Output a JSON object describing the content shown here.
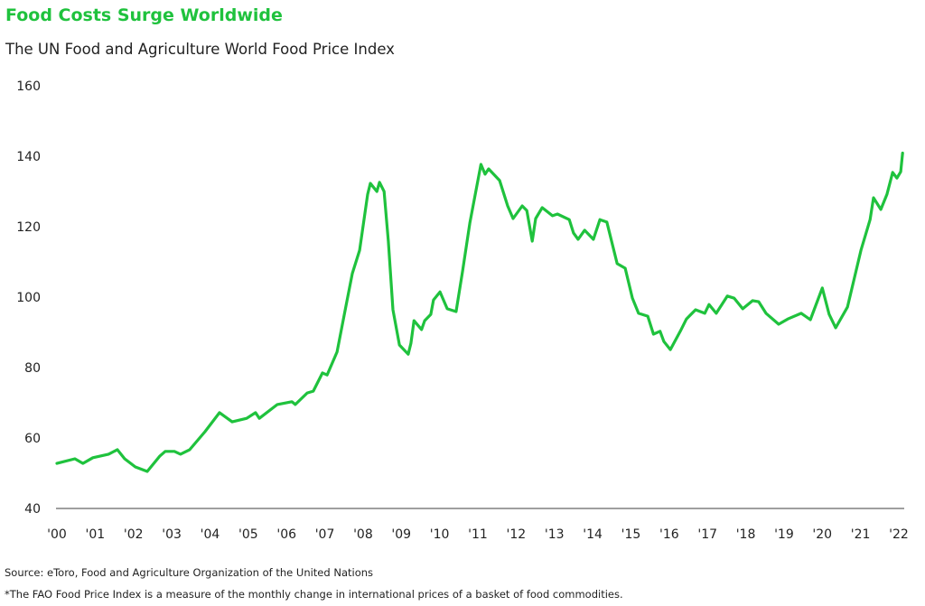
{
  "chart_data": {
    "type": "line",
    "title": "Food Costs Surge Worldwide",
    "subtitle": "The UN Food and Agriculture World Food Price Index",
    "xlabel": "",
    "ylabel": "",
    "ylim": [
      40,
      160
    ],
    "xlim": [
      2000,
      2022
    ],
    "yticks": [
      "160",
      "140",
      "120",
      "100",
      "80",
      "60",
      "40"
    ],
    "ytick_values": [
      160,
      140,
      120,
      100,
      80,
      60,
      40
    ],
    "xticks": [
      "'00",
      "'01",
      "'02",
      "'03",
      "'04",
      "'05",
      "'06",
      "'07",
      "'08",
      "'09",
      "'10",
      "'11",
      "'12",
      "'13",
      "'14",
      "'15",
      "'16",
      "'17",
      "'18",
      "'19",
      "'20",
      "'21",
      "'22"
    ],
    "grid": false,
    "line_color": "#1fc23d",
    "series": [
      {
        "x": [
          2000.0,
          2000.47,
          2000.68,
          2000.94,
          2001.35,
          2001.58,
          2001.77,
          2002.05,
          2002.36,
          2002.69,
          2002.83,
          2003.07,
          2003.23,
          2003.47,
          2003.87,
          2004.25,
          2004.58,
          2004.96,
          2005.19,
          2005.29,
          2005.76,
          2006.14,
          2006.23,
          2006.54,
          2006.7,
          2006.94,
          2007.06,
          2007.32,
          2007.56,
          2007.72,
          2007.91,
          2008.12,
          2008.19,
          2008.36,
          2008.43,
          2008.55,
          2008.66,
          2008.78,
          2008.95,
          2009.18,
          2009.25,
          2009.33,
          2009.53,
          2009.61,
          2009.77,
          2009.84,
          2010.01,
          2010.2,
          2010.43,
          2010.6,
          2010.79,
          2011.08,
          2011.19,
          2011.28,
          2011.57,
          2011.78,
          2011.92,
          2012.16,
          2012.28,
          2012.42,
          2012.51,
          2012.68,
          2012.95,
          2013.08,
          2013.39,
          2013.5,
          2013.62,
          2013.79,
          2014.02,
          2014.19,
          2014.37,
          2014.64,
          2014.85,
          2015.04,
          2015.2,
          2015.44,
          2015.59,
          2015.76,
          2015.86,
          2016.03,
          2016.29,
          2016.45,
          2016.69,
          2016.93,
          2017.04,
          2017.23,
          2017.52,
          2017.7,
          2017.92,
          2018.18,
          2018.34,
          2018.53,
          2018.86,
          2019.1,
          2019.45,
          2019.69,
          2020.0,
          2020.18,
          2020.35,
          2020.47,
          2020.66,
          2021.01,
          2021.25,
          2021.34,
          2021.53,
          2021.69,
          2021.84,
          2021.95,
          2022.05,
          2022.1
        ],
        "y": [
          52.8,
          54.1,
          52.8,
          54.4,
          55.4,
          56.7,
          54.1,
          51.8,
          50.5,
          54.9,
          56.2,
          56.2,
          55.4,
          56.7,
          61.8,
          67.2,
          64.6,
          65.6,
          67.2,
          65.6,
          69.5,
          70.3,
          69.5,
          72.8,
          73.3,
          78.5,
          77.9,
          84.4,
          97.9,
          106.7,
          113.3,
          129.2,
          132.3,
          130.0,
          132.6,
          130.0,
          115.9,
          96.4,
          86.4,
          83.8,
          86.9,
          93.3,
          90.8,
          93.3,
          95.1,
          99.2,
          101.5,
          96.7,
          95.9,
          107.4,
          121.0,
          137.7,
          134.9,
          136.4,
          133.1,
          125.9,
          122.3,
          125.9,
          124.6,
          115.9,
          122.3,
          125.4,
          123.1,
          123.6,
          122.0,
          118.2,
          116.4,
          119.0,
          116.4,
          122.0,
          121.3,
          109.5,
          108.2,
          99.7,
          95.4,
          94.6,
          89.5,
          90.3,
          87.4,
          85.1,
          90.3,
          93.8,
          96.4,
          95.4,
          97.9,
          95.4,
          100.3,
          99.7,
          96.7,
          99.0,
          98.7,
          95.4,
          92.3,
          93.8,
          95.4,
          93.6,
          102.6,
          95.1,
          91.3,
          93.6,
          97.2,
          113.3,
          122.0,
          128.2,
          124.9,
          129.2,
          135.4,
          133.8,
          135.6,
          140.9
        ]
      }
    ]
  },
  "footer": {
    "source": "Source: eToro, Food and Agriculture Organization of the United Nations",
    "note": "*The FAO Food Price Index is a measure of the monthly change in international prices of a basket of food commodities."
  }
}
